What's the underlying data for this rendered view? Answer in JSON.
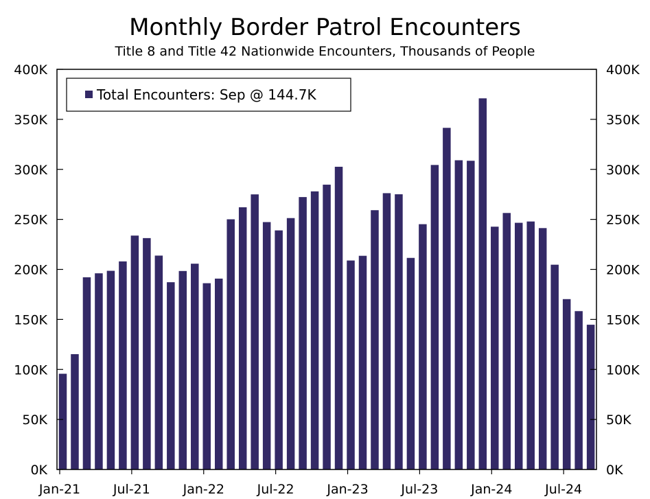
{
  "chart_data": {
    "type": "bar",
    "title": "Monthly Border Patrol Encounters",
    "subtitle": "Title 8 and Title 42 Nationwide Encounters, Thousands of People",
    "legend": "Total Encounters: Sep @ 144.7K",
    "legend_position": "top-left",
    "ylim": [
      0,
      400
    ],
    "yticks": [
      0,
      50,
      100,
      150,
      200,
      250,
      300,
      350,
      400
    ],
    "ytick_labels": [
      "0K",
      "50K",
      "100K",
      "150K",
      "200K",
      "250K",
      "300K",
      "350K",
      "400K"
    ],
    "xtick_labels": [
      "Jan-21",
      "Jul-21",
      "Jan-22",
      "Jul-22",
      "Jan-23",
      "Jul-23",
      "Jan-24",
      "Jul-24"
    ],
    "xtick_every": 6,
    "bar_color": "#332966",
    "series": [
      {
        "name": "Total Encounters",
        "unit": "thousands",
        "values": [
          95.7,
          115.3,
          192.1,
          196.1,
          198.6,
          208.0,
          233.8,
          231.3,
          213.8,
          187.2,
          198.4,
          205.7,
          186.2,
          190.8,
          250.1,
          262.1,
          275.0,
          247.3,
          239.0,
          251.3,
          272.3,
          278.0,
          284.7,
          302.6,
          208.9,
          213.6,
          259.2,
          276.2,
          275.1,
          211.5,
          245.2,
          304.4,
          341.5,
          309.1,
          308.6,
          371.0,
          242.7,
          256.4,
          246.6,
          247.9,
          241.3,
          204.7,
          170.3,
          158.3,
          144.7
        ]
      }
    ]
  }
}
